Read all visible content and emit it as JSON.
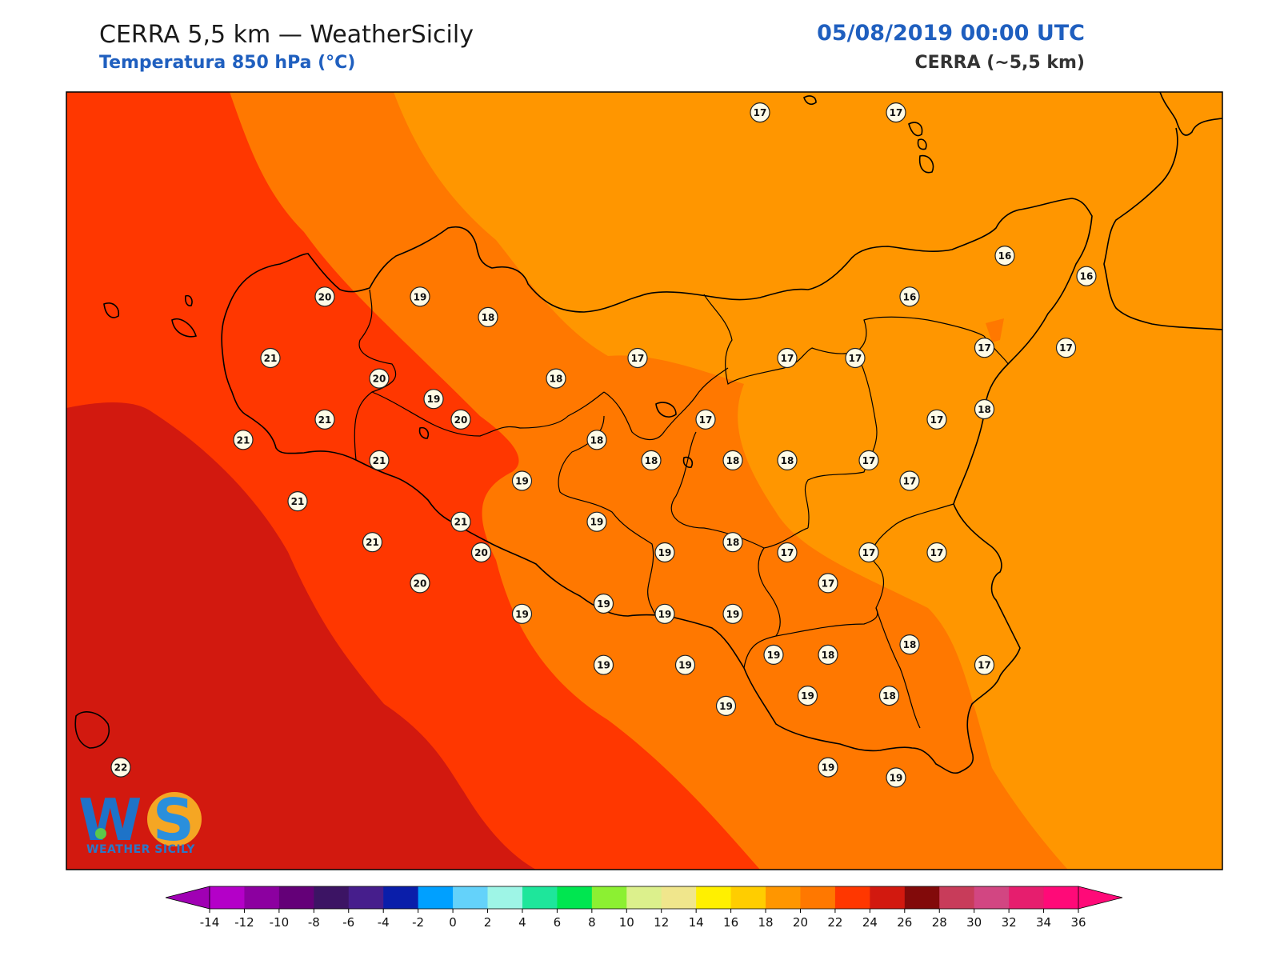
{
  "header": {
    "title": "CERRA 5,5 km — WeatherSicily",
    "subtitle": "Temperatura 850 hPa (°C)",
    "datetime": "05/08/2019 00:00 UTC",
    "model": "CERRA (~5,5 km)"
  },
  "logo": {
    "text": "WEATHER SICILY",
    "mark": "WS"
  },
  "colorbar": {
    "ticks": [
      -14,
      -12,
      -10,
      -8,
      -6,
      -4,
      -2,
      0,
      2,
      4,
      6,
      8,
      10,
      12,
      14,
      16,
      18,
      20,
      22,
      24,
      26,
      28,
      30,
      32,
      34,
      36
    ],
    "colors": [
      "#b400c8",
      "#8c00a0",
      "#640078",
      "#3c1464",
      "#461e8c",
      "#0a1eaa",
      "#00a0ff",
      "#64d2fa",
      "#9ef5e6",
      "#1ee69b",
      "#00e650",
      "#8cf032",
      "#dcf08c",
      "#f0e68c",
      "#fff000",
      "#ffcd00",
      "#ff9600",
      "#ff7800",
      "#ff3700",
      "#d2190f",
      "#820a0a",
      "#c83c5a",
      "#d24682",
      "#e61e6e",
      "#ff0a78"
    ],
    "under_color": "#a000b4",
    "over_color": "#ff0a78"
  },
  "stations": [
    {
      "v": "17",
      "lat": 39.1,
      "lon": 14.68
    },
    {
      "v": "17",
      "lat": 39.1,
      "lon": 15.48
    },
    {
      "v": "16",
      "lat": 38.4,
      "lon": 16.12
    },
    {
      "v": "16",
      "lat": 38.3,
      "lon": 16.6
    },
    {
      "v": "16",
      "lat": 38.2,
      "lon": 15.56
    },
    {
      "v": "20",
      "lat": 38.2,
      "lon": 12.12
    },
    {
      "v": "19",
      "lat": 38.2,
      "lon": 12.68
    },
    {
      "v": "18",
      "lat": 38.1,
      "lon": 13.08
    },
    {
      "v": "17",
      "lat": 37.95,
      "lon": 16.0
    },
    {
      "v": "17",
      "lat": 37.95,
      "lon": 16.48
    },
    {
      "v": "21",
      "lat": 37.9,
      "lon": 11.8
    },
    {
      "v": "17",
      "lat": 37.9,
      "lon": 13.96
    },
    {
      "v": "17",
      "lat": 37.9,
      "lon": 14.84
    },
    {
      "v": "17",
      "lat": 37.9,
      "lon": 15.24
    },
    {
      "v": "20",
      "lat": 37.8,
      "lon": 12.44
    },
    {
      "v": "19",
      "lat": 37.7,
      "lon": 12.76
    },
    {
      "v": "18",
      "lat": 37.8,
      "lon": 13.48
    },
    {
      "v": "18",
      "lat": 37.65,
      "lon": 16.0
    },
    {
      "v": "21",
      "lat": 37.6,
      "lon": 12.12
    },
    {
      "v": "20",
      "lat": 37.6,
      "lon": 12.92
    },
    {
      "v": "17",
      "lat": 37.6,
      "lon": 14.36
    },
    {
      "v": "17",
      "lat": 37.6,
      "lon": 15.72
    },
    {
      "v": "21",
      "lat": 37.5,
      "lon": 11.64
    },
    {
      "v": "18",
      "lat": 37.5,
      "lon": 13.72
    },
    {
      "v": "21",
      "lat": 37.4,
      "lon": 12.44
    },
    {
      "v": "18",
      "lat": 37.4,
      "lon": 14.04
    },
    {
      "v": "18",
      "lat": 37.4,
      "lon": 14.52
    },
    {
      "v": "18",
      "lat": 37.4,
      "lon": 14.84
    },
    {
      "v": "17",
      "lat": 37.4,
      "lon": 15.32
    },
    {
      "v": "19",
      "lat": 37.3,
      "lon": 13.28
    },
    {
      "v": "17",
      "lat": 37.3,
      "lon": 15.56
    },
    {
      "v": "21",
      "lat": 37.2,
      "lon": 11.96
    },
    {
      "v": "21",
      "lat": 37.1,
      "lon": 12.92
    },
    {
      "v": "19",
      "lat": 37.1,
      "lon": 13.72
    },
    {
      "v": "21",
      "lat": 37.0,
      "lon": 12.4
    },
    {
      "v": "18",
      "lat": 37.0,
      "lon": 14.52
    },
    {
      "v": "20",
      "lat": 36.95,
      "lon": 13.04
    },
    {
      "v": "19",
      "lat": 36.95,
      "lon": 14.12
    },
    {
      "v": "17",
      "lat": 36.95,
      "lon": 14.84
    },
    {
      "v": "17",
      "lat": 36.95,
      "lon": 15.32
    },
    {
      "v": "17",
      "lat": 36.95,
      "lon": 15.72
    },
    {
      "v": "20",
      "lat": 36.8,
      "lon": 12.68
    },
    {
      "v": "17",
      "lat": 36.8,
      "lon": 15.08
    },
    {
      "v": "19",
      "lat": 36.7,
      "lon": 13.76
    },
    {
      "v": "19",
      "lat": 36.65,
      "lon": 13.28
    },
    {
      "v": "19",
      "lat": 36.65,
      "lon": 14.12
    },
    {
      "v": "19",
      "lat": 36.65,
      "lon": 14.52
    },
    {
      "v": "18",
      "lat": 36.5,
      "lon": 15.56
    },
    {
      "v": "19",
      "lat": 36.45,
      "lon": 14.76
    },
    {
      "v": "18",
      "lat": 36.45,
      "lon": 15.08
    },
    {
      "v": "17",
      "lat": 36.4,
      "lon": 16.0
    },
    {
      "v": "19",
      "lat": 36.4,
      "lon": 13.76
    },
    {
      "v": "19",
      "lat": 36.4,
      "lon": 14.24
    },
    {
      "v": "19",
      "lat": 36.25,
      "lon": 14.96
    },
    {
      "v": "18",
      "lat": 36.25,
      "lon": 15.44
    },
    {
      "v": "19",
      "lat": 36.2,
      "lon": 14.48
    },
    {
      "v": "19",
      "lat": 35.9,
      "lon": 15.08
    },
    {
      "v": "19",
      "lat": 35.85,
      "lon": 15.48
    },
    {
      "v": "22",
      "lat": 35.9,
      "lon": 10.92
    }
  ]
}
